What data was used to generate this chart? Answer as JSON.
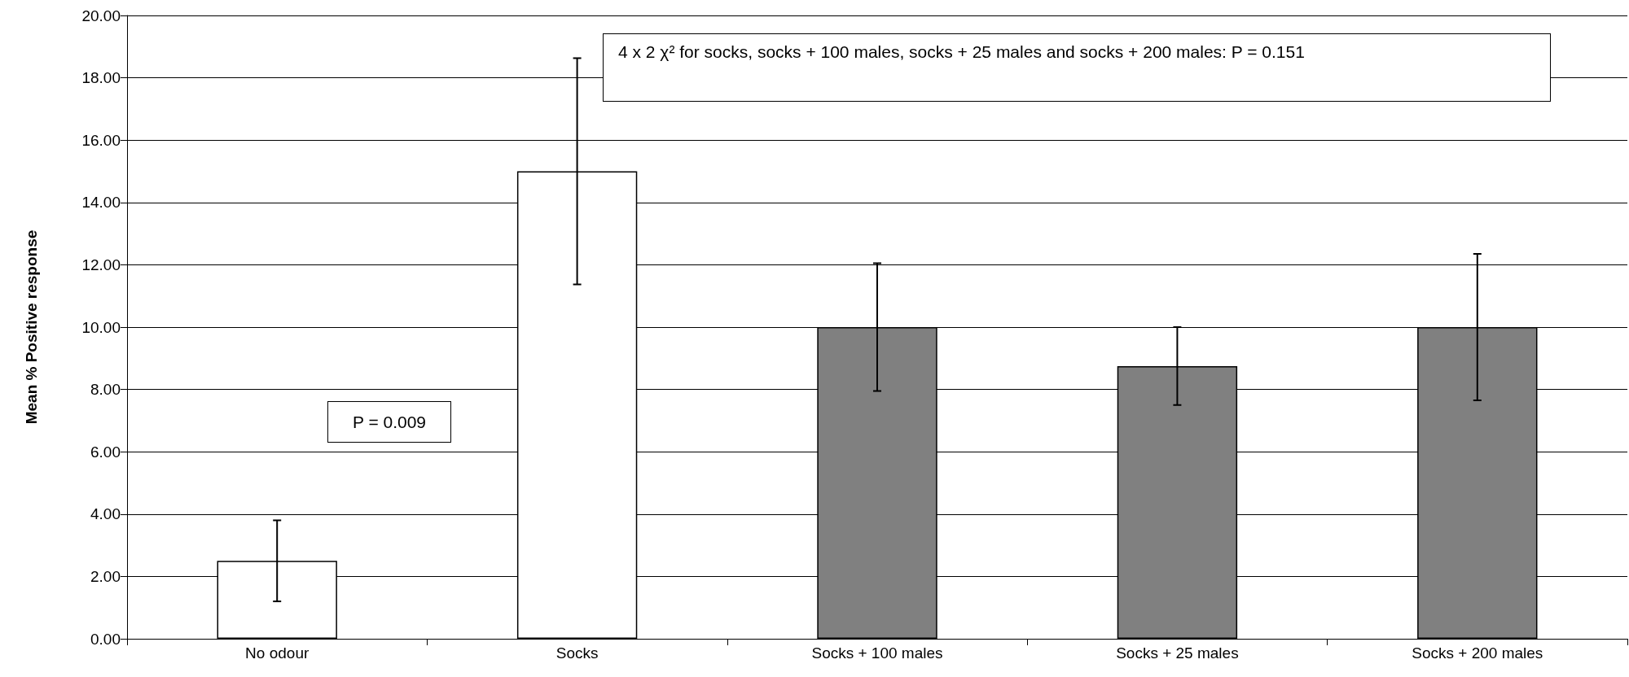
{
  "chart_data": {
    "type": "bar",
    "categories": [
      "No odour",
      "Socks",
      "Socks + 100 males",
      "Socks + 25 males",
      "Socks + 200 males"
    ],
    "values": [
      2.5,
      15,
      10,
      8.75,
      10
    ],
    "errors": [
      1.3,
      3.63,
      2.05,
      1.25,
      2.35
    ],
    "colors": [
      "#ffffff",
      "#ffffff",
      "#808080",
      "#808080",
      "#808080"
    ],
    "ylabel": "Mean % Positive response",
    "ylim": [
      0,
      20
    ],
    "yticks": [
      {
        "value": 0,
        "label": "0.00"
      },
      {
        "value": 2,
        "label": "2.00"
      },
      {
        "value": 4,
        "label": "4.00"
      },
      {
        "value": 6,
        "label": "6.00"
      },
      {
        "value": 8,
        "label": "8.00"
      },
      {
        "value": 10,
        "label": "10.00"
      },
      {
        "value": 12,
        "label": "12.00"
      },
      {
        "value": 14,
        "label": "14.00"
      },
      {
        "value": 16,
        "label": "16.00"
      },
      {
        "value": 18,
        "label": "18.00"
      },
      {
        "value": 20,
        "label": "20.00"
      }
    ],
    "grid": "y",
    "annotations": [
      "4 x 2 χ² for socks, socks + 100 males, socks + 25 males and socks + 200 males: P = 0.151",
      "P = 0.009"
    ]
  }
}
